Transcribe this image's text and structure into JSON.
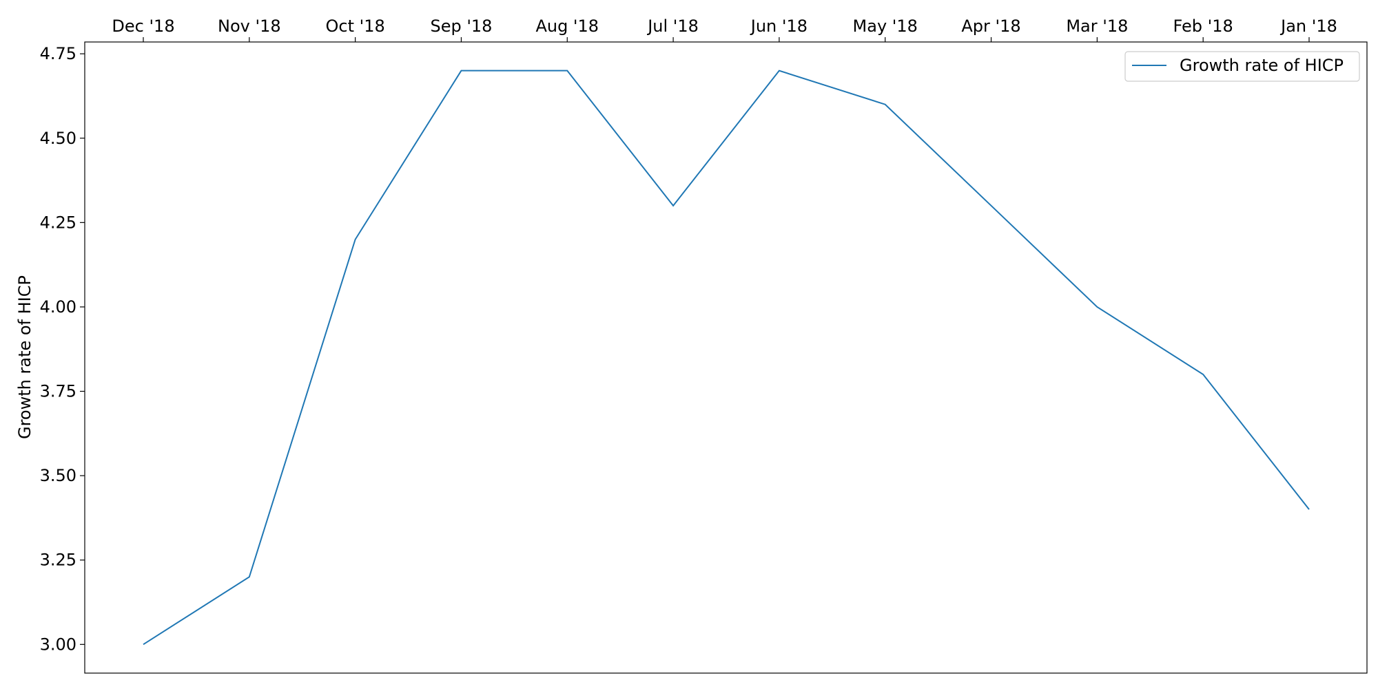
{
  "chart_data": {
    "type": "line",
    "title": "",
    "xlabel": "",
    "ylabel": "Growth rate of HICP",
    "x_axis_position": "top",
    "categories": [
      "Dec '18",
      "Nov '18",
      "Oct '18",
      "Sep '18",
      "Aug '18",
      "Jul '18",
      "Jun '18",
      "May '18",
      "Apr '18",
      "Mar '18",
      "Feb '18",
      "Jan '18"
    ],
    "series": [
      {
        "name": "Growth rate of HICP",
        "color": "#1f77b4",
        "values": [
          3.0,
          3.2,
          4.2,
          4.7,
          4.7,
          4.3,
          4.7,
          4.6,
          4.3,
          4.0,
          3.8,
          3.4
        ]
      }
    ],
    "yticks": [
      "3.00",
      "3.25",
      "3.50",
      "3.75",
      "4.00",
      "4.25",
      "4.50",
      "4.75"
    ],
    "ylim": [
      2.915,
      4.785
    ],
    "grid": false,
    "legend": {
      "placement": "top-right"
    }
  }
}
